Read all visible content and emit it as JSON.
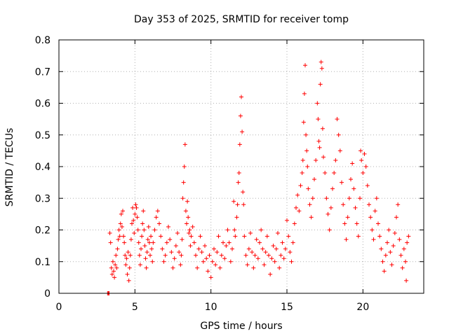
{
  "chart_data": {
    "type": "scatter",
    "title": "Day 353 of 2025, SRMTID for receiver tomp",
    "xlabel": "GPS time / hours",
    "ylabel": "SRMTID / TECUs",
    "xlim": [
      0,
      24
    ],
    "ylim": [
      0,
      0.8
    ],
    "x_ticks": [
      0,
      5,
      10,
      15,
      20
    ],
    "y_ticks": [
      0,
      0.1,
      0.2,
      0.3,
      0.4,
      0.5,
      0.6,
      0.7,
      0.8
    ],
    "x_tick_labels": [
      "0",
      "5",
      "10",
      "15",
      "20"
    ],
    "y_tick_labels": [
      "0",
      "0.1",
      "0.2",
      "0.3",
      "0.4",
      "0.5",
      "0.6",
      "0.7",
      "0.8"
    ],
    "grid": true,
    "legend": "none",
    "marker": "+",
    "colors": {
      "series": "#ff0000",
      "grid": "#b0b0b0",
      "axis": "#000000"
    },
    "series": [
      {
        "name": "SRMTID",
        "points": [
          [
            3.2,
            0.0
          ],
          [
            3.25,
            0.0
          ],
          [
            3.3,
            0.0
          ],
          [
            3.35,
            0.19
          ],
          [
            3.4,
            0.16
          ],
          [
            3.45,
            0.08
          ],
          [
            3.5,
            0.06
          ],
          [
            3.55,
            0.1
          ],
          [
            3.6,
            0.07
          ],
          [
            3.65,
            0.05
          ],
          [
            3.7,
            0.09
          ],
          [
            3.75,
            0.12
          ],
          [
            3.8,
            0.08
          ],
          [
            3.85,
            0.14
          ],
          [
            3.9,
            0.17
          ],
          [
            3.95,
            0.2
          ],
          [
            4.0,
            0.18
          ],
          [
            4.05,
            0.22
          ],
          [
            4.1,
            0.25
          ],
          [
            4.15,
            0.21
          ],
          [
            4.2,
            0.26
          ],
          [
            4.25,
            0.18
          ],
          [
            4.3,
            0.16
          ],
          [
            4.35,
            0.12
          ],
          [
            4.4,
            0.09
          ],
          [
            4.45,
            0.11
          ],
          [
            4.5,
            0.06
          ],
          [
            4.55,
            0.13
          ],
          [
            4.6,
            0.04
          ],
          [
            4.65,
            0.08
          ],
          [
            4.7,
            0.12
          ],
          [
            4.75,
            0.17
          ],
          [
            4.8,
            0.22
          ],
          [
            4.85,
            0.27
          ],
          [
            4.9,
            0.23
          ],
          [
            4.95,
            0.19
          ],
          [
            5.0,
            0.25
          ],
          [
            5.05,
            0.28
          ],
          [
            5.1,
            0.27
          ],
          [
            5.15,
            0.24
          ],
          [
            5.2,
            0.2
          ],
          [
            5.25,
            0.16
          ],
          [
            5.3,
            0.12
          ],
          [
            5.35,
            0.09
          ],
          [
            5.4,
            0.14
          ],
          [
            5.45,
            0.18
          ],
          [
            5.5,
            0.22
          ],
          [
            5.55,
            0.26
          ],
          [
            5.6,
            0.2
          ],
          [
            5.65,
            0.15
          ],
          [
            5.7,
            0.11
          ],
          [
            5.75,
            0.08
          ],
          [
            5.8,
            0.13
          ],
          [
            5.85,
            0.17
          ],
          [
            5.9,
            0.21
          ],
          [
            5.95,
            0.16
          ],
          [
            6.0,
            0.12
          ],
          [
            6.05,
            0.18
          ],
          [
            6.1,
            0.14
          ],
          [
            6.15,
            0.1
          ],
          [
            6.2,
            0.16
          ],
          [
            6.3,
            0.2
          ],
          [
            6.4,
            0.24
          ],
          [
            6.5,
            0.26
          ],
          [
            6.6,
            0.22
          ],
          [
            6.7,
            0.18
          ],
          [
            6.8,
            0.14
          ],
          [
            6.9,
            0.1
          ],
          [
            7.0,
            0.12
          ],
          [
            7.1,
            0.16
          ],
          [
            7.2,
            0.21
          ],
          [
            7.3,
            0.17
          ],
          [
            7.4,
            0.13
          ],
          [
            7.5,
            0.08
          ],
          [
            7.6,
            0.11
          ],
          [
            7.7,
            0.15
          ],
          [
            7.8,
            0.19
          ],
          [
            7.9,
            0.13
          ],
          [
            8.0,
            0.09
          ],
          [
            8.05,
            0.12
          ],
          [
            8.1,
            0.17
          ],
          [
            8.15,
            0.3
          ],
          [
            8.2,
            0.35
          ],
          [
            8.25,
            0.4
          ],
          [
            8.3,
            0.47
          ],
          [
            8.35,
            0.26
          ],
          [
            8.4,
            0.22
          ],
          [
            8.45,
            0.29
          ],
          [
            8.5,
            0.24
          ],
          [
            8.55,
            0.19
          ],
          [
            8.6,
            0.2
          ],
          [
            8.65,
            0.15
          ],
          [
            8.7,
            0.18
          ],
          [
            8.8,
            0.21
          ],
          [
            8.9,
            0.16
          ],
          [
            9.0,
            0.12
          ],
          [
            9.1,
            0.08
          ],
          [
            9.2,
            0.14
          ],
          [
            9.3,
            0.18
          ],
          [
            9.4,
            0.13
          ],
          [
            9.5,
            0.1
          ],
          [
            9.6,
            0.15
          ],
          [
            9.7,
            0.11
          ],
          [
            9.8,
            0.07
          ],
          [
            9.9,
            0.12
          ],
          [
            10.0,
            0.05
          ],
          [
            10.1,
            0.1
          ],
          [
            10.2,
            0.14
          ],
          [
            10.3,
            0.09
          ],
          [
            10.4,
            0.13
          ],
          [
            10.5,
            0.18
          ],
          [
            10.6,
            0.08
          ],
          [
            10.7,
            0.12
          ],
          [
            10.8,
            0.16
          ],
          [
            10.9,
            0.11
          ],
          [
            11.0,
            0.15
          ],
          [
            11.1,
            0.2
          ],
          [
            11.2,
            0.16
          ],
          [
            11.3,
            0.1
          ],
          [
            11.4,
            0.14
          ],
          [
            11.5,
            0.29
          ],
          [
            11.55,
            0.2
          ],
          [
            11.6,
            0.18
          ],
          [
            11.7,
            0.24
          ],
          [
            11.75,
            0.28
          ],
          [
            11.8,
            0.35
          ],
          [
            11.85,
            0.38
          ],
          [
            11.9,
            0.47
          ],
          [
            11.95,
            0.56
          ],
          [
            12.0,
            0.62
          ],
          [
            12.05,
            0.51
          ],
          [
            12.1,
            0.32
          ],
          [
            12.15,
            0.28
          ],
          [
            12.2,
            0.18
          ],
          [
            12.3,
            0.12
          ],
          [
            12.4,
            0.09
          ],
          [
            12.5,
            0.14
          ],
          [
            12.6,
            0.19
          ],
          [
            12.7,
            0.13
          ],
          [
            12.8,
            0.08
          ],
          [
            12.9,
            0.12
          ],
          [
            13.0,
            0.17
          ],
          [
            13.1,
            0.11
          ],
          [
            13.2,
            0.16
          ],
          [
            13.3,
            0.2
          ],
          [
            13.4,
            0.14
          ],
          [
            13.5,
            0.09
          ],
          [
            13.6,
            0.13
          ],
          [
            13.7,
            0.18
          ],
          [
            13.8,
            0.12
          ],
          [
            13.9,
            0.06
          ],
          [
            14.0,
            0.11
          ],
          [
            14.1,
            0.15
          ],
          [
            14.2,
            0.1
          ],
          [
            14.3,
            0.14
          ],
          [
            14.4,
            0.19
          ],
          [
            14.5,
            0.08
          ],
          [
            14.6,
            0.12
          ],
          [
            14.7,
            0.16
          ],
          [
            14.8,
            0.11
          ],
          [
            14.9,
            0.14
          ],
          [
            15.0,
            0.23
          ],
          [
            15.1,
            0.18
          ],
          [
            15.2,
            0.13
          ],
          [
            15.3,
            0.1
          ],
          [
            15.4,
            0.16
          ],
          [
            15.5,
            0.22
          ],
          [
            15.6,
            0.27
          ],
          [
            15.7,
            0.31
          ],
          [
            15.8,
            0.26
          ],
          [
            15.9,
            0.34
          ],
          [
            16.0,
            0.38
          ],
          [
            16.05,
            0.42
          ],
          [
            16.1,
            0.54
          ],
          [
            16.15,
            0.63
          ],
          [
            16.2,
            0.72
          ],
          [
            16.25,
            0.5
          ],
          [
            16.3,
            0.45
          ],
          [
            16.35,
            0.4
          ],
          [
            16.4,
            0.33
          ],
          [
            16.5,
            0.28
          ],
          [
            16.6,
            0.24
          ],
          [
            16.7,
            0.3
          ],
          [
            16.8,
            0.36
          ],
          [
            16.9,
            0.42
          ],
          [
            17.0,
            0.6
          ],
          [
            17.05,
            0.55
          ],
          [
            17.1,
            0.48
          ],
          [
            17.15,
            0.46
          ],
          [
            17.2,
            0.66
          ],
          [
            17.25,
            0.73
          ],
          [
            17.3,
            0.71
          ],
          [
            17.35,
            0.52
          ],
          [
            17.4,
            0.43
          ],
          [
            17.5,
            0.38
          ],
          [
            17.6,
            0.3
          ],
          [
            17.7,
            0.25
          ],
          [
            17.8,
            0.2
          ],
          [
            17.9,
            0.27
          ],
          [
            18.0,
            0.33
          ],
          [
            18.1,
            0.38
          ],
          [
            18.2,
            0.42
          ],
          [
            18.3,
            0.55
          ],
          [
            18.4,
            0.5
          ],
          [
            18.5,
            0.45
          ],
          [
            18.6,
            0.35
          ],
          [
            18.7,
            0.28
          ],
          [
            18.8,
            0.22
          ],
          [
            18.9,
            0.17
          ],
          [
            19.0,
            0.24
          ],
          [
            19.1,
            0.3
          ],
          [
            19.2,
            0.36
          ],
          [
            19.3,
            0.41
          ],
          [
            19.4,
            0.33
          ],
          [
            19.5,
            0.27
          ],
          [
            19.6,
            0.22
          ],
          [
            19.7,
            0.18
          ],
          [
            19.8,
            0.3
          ],
          [
            19.85,
            0.45
          ],
          [
            19.9,
            0.42
          ],
          [
            20.0,
            0.38
          ],
          [
            20.1,
            0.44
          ],
          [
            20.2,
            0.4
          ],
          [
            20.3,
            0.34
          ],
          [
            20.4,
            0.28
          ],
          [
            20.5,
            0.24
          ],
          [
            20.6,
            0.2
          ],
          [
            20.7,
            0.17
          ],
          [
            20.8,
            0.26
          ],
          [
            20.9,
            0.3
          ],
          [
            21.0,
            0.22
          ],
          [
            21.1,
            0.18
          ],
          [
            21.2,
            0.14
          ],
          [
            21.3,
            0.1
          ],
          [
            21.4,
            0.07
          ],
          [
            21.5,
            0.12
          ],
          [
            21.6,
            0.16
          ],
          [
            21.7,
            0.2
          ],
          [
            21.8,
            0.13
          ],
          [
            21.9,
            0.09
          ],
          [
            22.0,
            0.15
          ],
          [
            22.1,
            0.19
          ],
          [
            22.2,
            0.24
          ],
          [
            22.3,
            0.28
          ],
          [
            22.4,
            0.17
          ],
          [
            22.5,
            0.12
          ],
          [
            22.6,
            0.08
          ],
          [
            22.7,
            0.14
          ],
          [
            22.8,
            0.1
          ],
          [
            22.85,
            0.04
          ],
          [
            22.9,
            0.16
          ],
          [
            23.0,
            0.18
          ]
        ]
      }
    ]
  }
}
